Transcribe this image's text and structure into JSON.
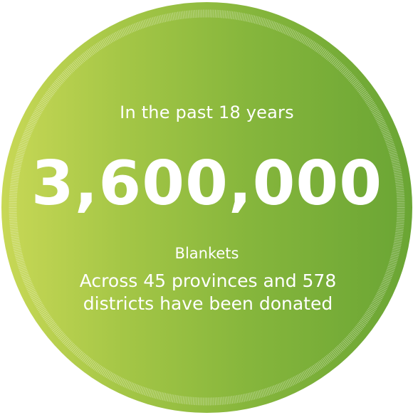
{
  "infographic": {
    "intro": "In the past 18 years",
    "big_number": "3,600,000",
    "item_label": "Blankets",
    "description": "Across 45 provinces and 578 districts have been donated"
  },
  "colors": {
    "gradient_left": "#c8d856",
    "gradient_right": "#6aa534",
    "text": "#ffffff"
  }
}
